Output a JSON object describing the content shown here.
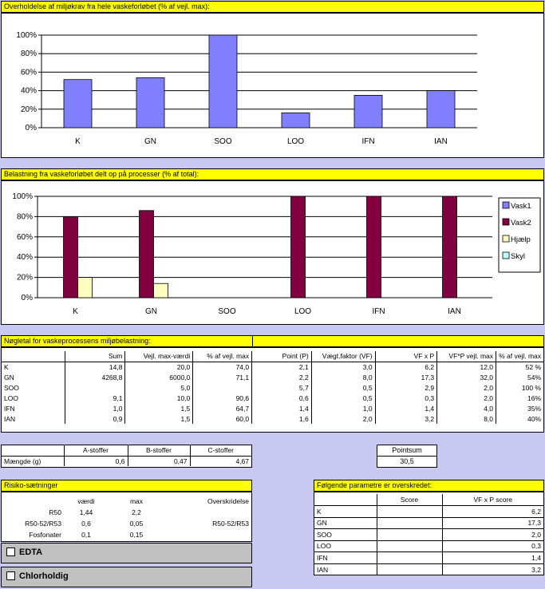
{
  "chart1": {
    "title": "Overholdelse af miljøkrav fra hele vaskeforløbet (% af vejl. max):",
    "chart_data": {
      "type": "bar",
      "categories": [
        "K",
        "GN",
        "SOO",
        "LOO",
        "IFN",
        "IAN"
      ],
      "values": [
        52,
        54,
        100,
        16,
        35,
        40
      ],
      "ylim": [
        0,
        100
      ],
      "yticks": [
        "0%",
        "20%",
        "40%",
        "60%",
        "80%",
        "100%"
      ],
      "color": "#8080ff",
      "grid": true
    }
  },
  "chart2": {
    "title": "Belastning fra vaskeforløbet delt op på processer (% af total):",
    "chart_data": {
      "type": "bar",
      "categories": [
        "K",
        "GN",
        "SOO",
        "LOO",
        "IFN",
        "IAN"
      ],
      "series": [
        {
          "name": "Vask1",
          "color": "#8080ff",
          "values": [
            0,
            0,
            0,
            0,
            0,
            0
          ]
        },
        {
          "name": "Vask2",
          "color": "#800040",
          "values": [
            80,
            86,
            0,
            100,
            100,
            100
          ]
        },
        {
          "name": "Hjælp",
          "color": "#ffffc0",
          "values": [
            20,
            14,
            0,
            0,
            0,
            0
          ]
        },
        {
          "name": "Skyl",
          "color": "#c0ffff",
          "values": [
            0,
            0,
            0,
            0,
            0,
            0
          ]
        }
      ],
      "ylim": [
        0,
        100
      ],
      "yticks": [
        "0%",
        "20%",
        "40%",
        "60%",
        "80%",
        "100%"
      ],
      "legend": "right",
      "grid": true
    }
  },
  "nogletal": {
    "title": "Nøgletal for vaskeprocessens miljøbelastning:",
    "headers": [
      "",
      "Sum",
      "Vejl. max-værdi",
      "% af vejl. max",
      "Point (P)",
      "Vægt.faktor (VF)",
      "VF x P",
      "VF*P vejl. max",
      "% af vejl. max"
    ],
    "rows": [
      [
        "K",
        "14,8",
        "20,0",
        "74,0",
        "2,1",
        "3,0",
        "6,2",
        "12,0",
        "52 %"
      ],
      [
        "GN",
        "4268,8",
        "6000,0",
        "71,1",
        "2,2",
        "8,0",
        "17,3",
        "32,0",
        "54%"
      ],
      [
        "SOO",
        "",
        "5,0",
        "",
        "5,7",
        "0,5",
        "2,9",
        "2,0",
        "100 %"
      ],
      [
        "LOO",
        "9,1",
        "10,0",
        "90,6",
        "0,6",
        "0,5",
        "0,3",
        "2,0",
        "16%"
      ],
      [
        "IFN",
        "1,0",
        "1,5",
        "64,7",
        "1,4",
        "1,0",
        "1,4",
        "4,0",
        "35%"
      ],
      [
        "IAN",
        "0,9",
        "1,5",
        "60,0",
        "1,6",
        "2,0",
        "3,2",
        "8,0",
        "40%"
      ]
    ]
  },
  "stoffer": {
    "headers": [
      "",
      "A-stoffer",
      "B-stoffer",
      "C-stoffer"
    ],
    "row": [
      "Mængde (g)",
      "0,6",
      "0,47",
      "4,67"
    ]
  },
  "pointsum": {
    "label": "Pointsum",
    "value": "30,5"
  },
  "risiko": {
    "title": "Risiko-sætninger",
    "headers": [
      "",
      "værdi",
      "max",
      "Overskridelse"
    ],
    "rows": [
      [
        "R50",
        "1,44",
        "2,2",
        ""
      ],
      [
        "R50-52/R53",
        "0,6",
        "0,05",
        "R50-52/R53"
      ],
      [
        "Fosfonater",
        "0,1",
        "0,15",
        ""
      ]
    ]
  },
  "checkboxes": {
    "edta": "EDTA",
    "chlor": "Chlorholdig"
  },
  "overskredet": {
    "title": "Følgende parametre er overskredet:",
    "headers": [
      "",
      "Score",
      "VF x P score"
    ],
    "rows": [
      [
        "K",
        "",
        "6,2"
      ],
      [
        "GN",
        "",
        "17,3"
      ],
      [
        "SOO",
        "",
        "2,0"
      ],
      [
        "LOO",
        "",
        "0,3"
      ],
      [
        "IFN",
        "",
        "1,4"
      ],
      [
        "IAN",
        "",
        "3,2"
      ]
    ]
  }
}
